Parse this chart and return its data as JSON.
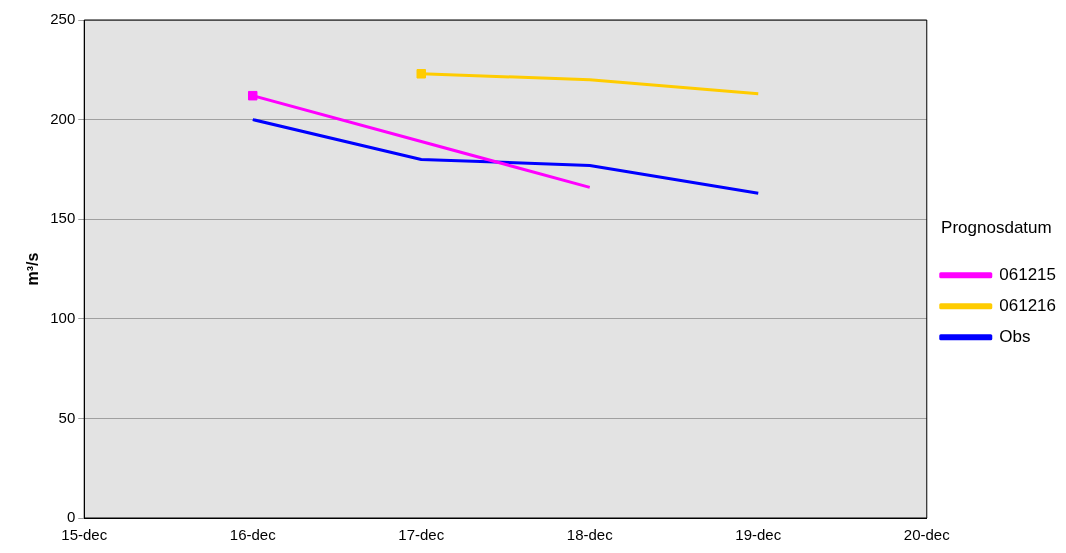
{
  "chart_data": {
    "type": "line",
    "ylabel": "m³/s",
    "legend_title": "Prognosdatum",
    "categories": [
      "15-dec",
      "16-dec",
      "17-dec",
      "18-dec",
      "19-dec",
      "20-dec"
    ],
    "series": [
      {
        "name": "061215",
        "color": "#ff00ff",
        "values": [
          null,
          212,
          189,
          166,
          null,
          null
        ]
      },
      {
        "name": "061216",
        "color": "#ffcc00",
        "values": [
          null,
          null,
          223,
          220,
          213,
          null
        ]
      },
      {
        "name": "Obs",
        "color": "#0000ff",
        "values": [
          null,
          200,
          180,
          177,
          163,
          null
        ]
      },
      {
        "type": "scatter",
        "marker": "square",
        "color": "#ff00ff",
        "values": [
          null,
          212,
          null,
          null,
          null,
          null
        ]
      },
      {
        "type": "scatter",
        "marker": "square",
        "color": "#ffcc00",
        "values": [
          null,
          null,
          223,
          null,
          null,
          null
        ]
      }
    ],
    "ylim": [
      0,
      250
    ],
    "yticks": [
      0,
      50,
      100,
      150,
      200,
      250
    ],
    "grid": "y",
    "legend": "right",
    "marker": "none",
    "line_style": "solid"
  }
}
